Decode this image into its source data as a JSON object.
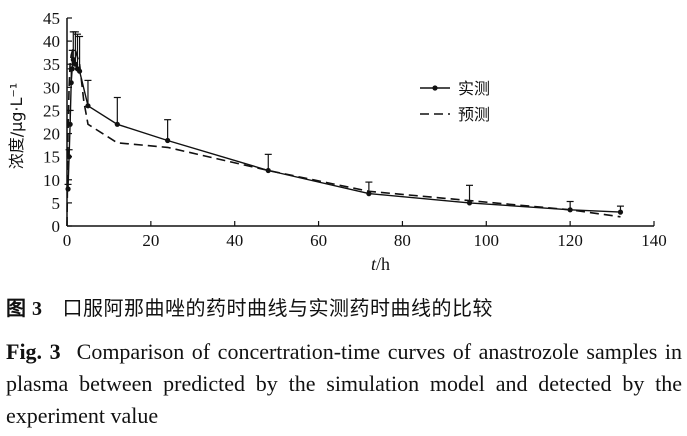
{
  "chart_data": {
    "type": "line",
    "xlabel": "t/h",
    "xlabel_italic": "t",
    "xlabel_unit": "/h",
    "ylabel": "浓度/μg·L⁻¹",
    "xlim": [
      0,
      140
    ],
    "ylim": [
      0,
      45
    ],
    "xticks": [
      0,
      20,
      40,
      60,
      80,
      100,
      120,
      140
    ],
    "yticks": [
      0,
      5,
      10,
      15,
      20,
      25,
      30,
      35,
      40,
      45
    ],
    "legend_position": "upper-right",
    "series": [
      {
        "name": "实测",
        "style": "solid-with-markers",
        "x": [
          0.25,
          0.5,
          0.75,
          1,
          1.25,
          1.5,
          2,
          2.5,
          3,
          5,
          12,
          24,
          48,
          72,
          96,
          120,
          132
        ],
        "y": [
          8,
          15,
          22,
          31,
          34,
          36,
          35,
          34,
          33.5,
          26,
          22,
          18.5,
          12,
          7,
          5,
          3.5,
          3
        ],
        "err_upper": [
          1,
          1.5,
          3,
          3,
          4,
          6,
          7,
          7.5,
          7.5,
          5.5,
          5.8,
          4.5,
          3.5,
          2.5,
          3.8,
          1.8,
          1.3
        ]
      },
      {
        "name": "预测",
        "style": "dashed",
        "x": [
          0,
          0.25,
          0.5,
          0.75,
          1,
          1.5,
          2,
          3,
          4,
          5,
          12,
          24,
          48,
          72,
          96,
          120,
          132
        ],
        "y": [
          0,
          20,
          30,
          35,
          37,
          38.5,
          38,
          35,
          27,
          22,
          18,
          17,
          12,
          7.5,
          5.5,
          3.5,
          2
        ]
      }
    ]
  },
  "caption": {
    "cn_label": "图 3",
    "cn_text": "口服阿那曲唑的药时曲线与实测药时曲线的比较",
    "en_label": "Fig.  3",
    "en_text": "Comparison of concertration-time curves of anastrozole samples in plasma between predicted by the simulation model and detected by the experiment value"
  }
}
